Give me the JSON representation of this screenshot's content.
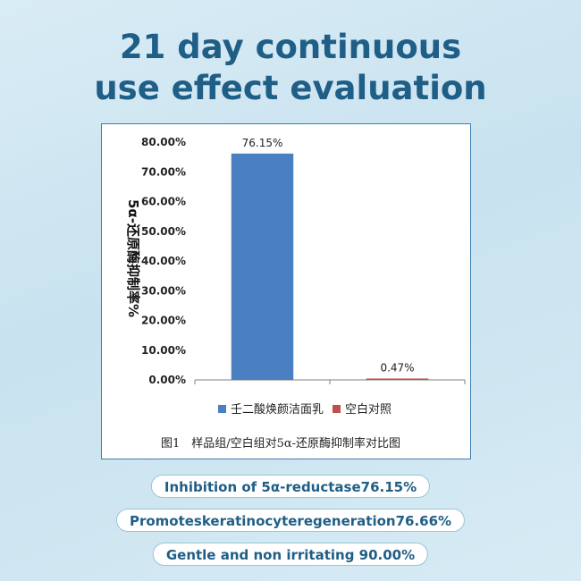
{
  "headline": {
    "line1": "21 day continuous",
    "line2": "use effect evaluation"
  },
  "chart_data": {
    "type": "bar",
    "ylabel": "5α-还原酶抑制率%",
    "ylim": [
      0,
      80
    ],
    "yticks": [
      "0.00%",
      "10.00%",
      "20.00%",
      "30.00%",
      "40.00%",
      "50.00%",
      "60.00%",
      "70.00%",
      "80.00%"
    ],
    "categories": [
      "壬二酸焕颜洁面乳",
      "空白对照"
    ],
    "values": [
      76.15,
      0.47
    ],
    "data_labels": [
      "76.15%",
      "0.47%"
    ],
    "colors": [
      "#4a7fc1",
      "#c0504d"
    ],
    "legend_position": "bottom",
    "caption": "图1　样品组/空白组对5α-还原酶抑制率对比图"
  },
  "pills": [
    "Inhibition of 5α-reductase76.15%",
    "Promoteskeratinocyteregeneration76.66%",
    "Gentle and non irritating 90.00%"
  ]
}
